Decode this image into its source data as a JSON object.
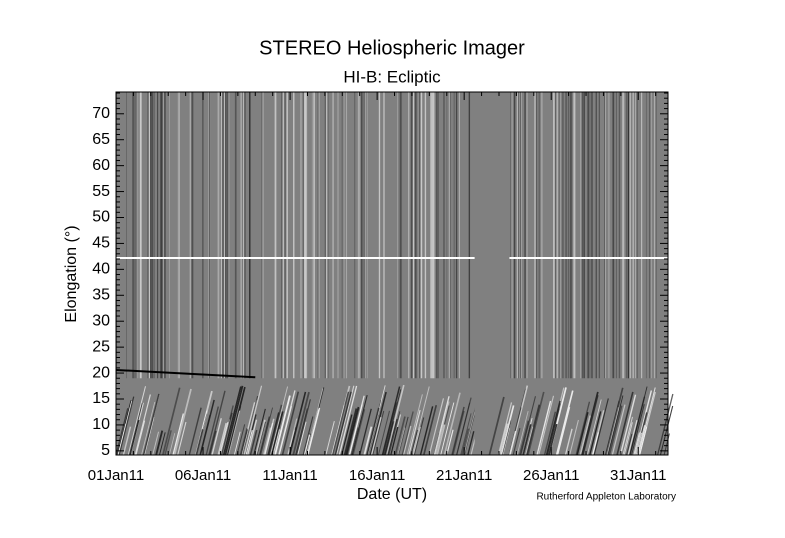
{
  "chart_data": {
    "type": "image",
    "title": "STEREO Heliospheric Imager",
    "subtitle": "HI-B: Ecliptic",
    "xlabel": "Date (UT)",
    "ylabel": "Elongation (°)",
    "credit": "Rutherford Appleton Laboratory",
    "xlim": [
      "2011-01-01T00:00Z",
      "2011-02-01T17:00Z"
    ],
    "xticks": [
      {
        "value": "2011-01-01T00:00Z",
        "label": "01Jan11"
      },
      {
        "value": "2011-01-06T00:00Z",
        "label": "06Jan11"
      },
      {
        "value": "2011-01-11T00:00Z",
        "label": "11Jan11"
      },
      {
        "value": "2011-01-16T00:00Z",
        "label": "16Jan11"
      },
      {
        "value": "2011-01-21T00:00Z",
        "label": "21Jan11"
      },
      {
        "value": "2011-01-26T00:00Z",
        "label": "26Jan11"
      },
      {
        "value": "2011-01-31T00:00Z",
        "label": "31Jan11"
      }
    ],
    "ylim": [
      4.2,
      74.2
    ],
    "yticks": [
      5,
      10,
      15,
      20,
      25,
      30,
      35,
      40,
      45,
      50,
      55,
      60,
      65,
      70
    ]
  }
}
